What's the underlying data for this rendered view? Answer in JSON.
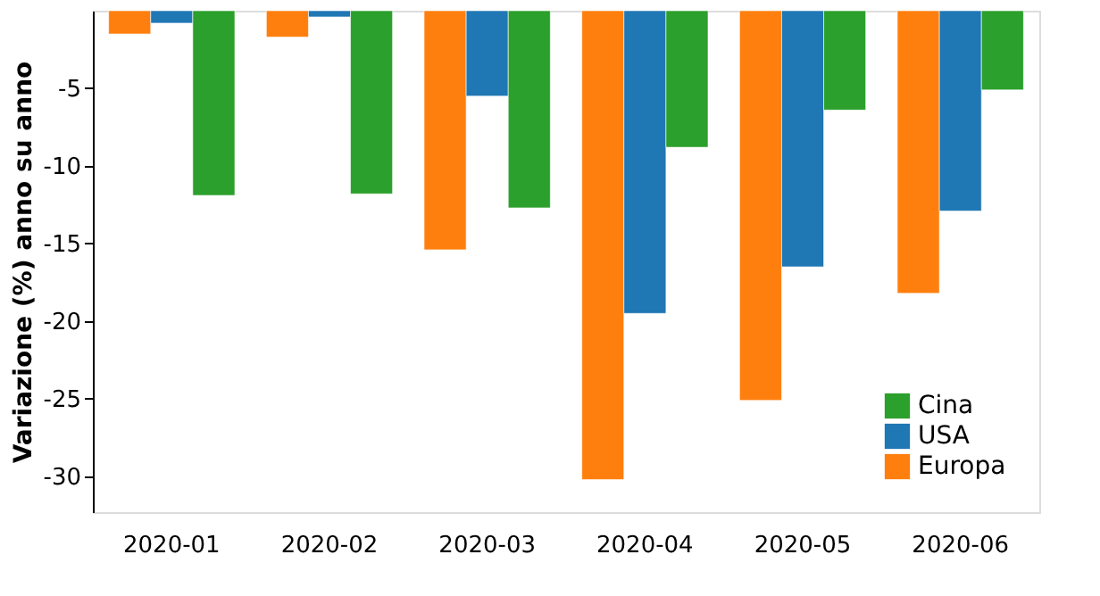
{
  "chart_data": {
    "type": "bar",
    "ylabel": "Variazione (%) anno su anno",
    "categories": [
      "2020-01",
      "2020-02",
      "2020-03",
      "2020-04",
      "2020-05",
      "2020-06"
    ],
    "series": [
      {
        "name": "Europa",
        "color": "#ff7f0e",
        "values": [
          -1.5,
          -1.7,
          -15.4,
          -30.2,
          -25.1,
          -18.2
        ]
      },
      {
        "name": "USA",
        "color": "#1f77b4",
        "values": [
          -0.8,
          -0.4,
          -5.5,
          -19.5,
          -16.5,
          -12.9
        ]
      },
      {
        "name": "Cina",
        "color": "#2ca02c",
        "values": [
          -11.9,
          -11.8,
          -12.7,
          -8.8,
          -6.4,
          -5.1
        ]
      }
    ],
    "ylim": [
      -32.3,
      0
    ],
    "yticks": [
      -5,
      -10,
      -15,
      -20,
      -25,
      -30
    ],
    "grid": false,
    "legend": "bottom right"
  }
}
